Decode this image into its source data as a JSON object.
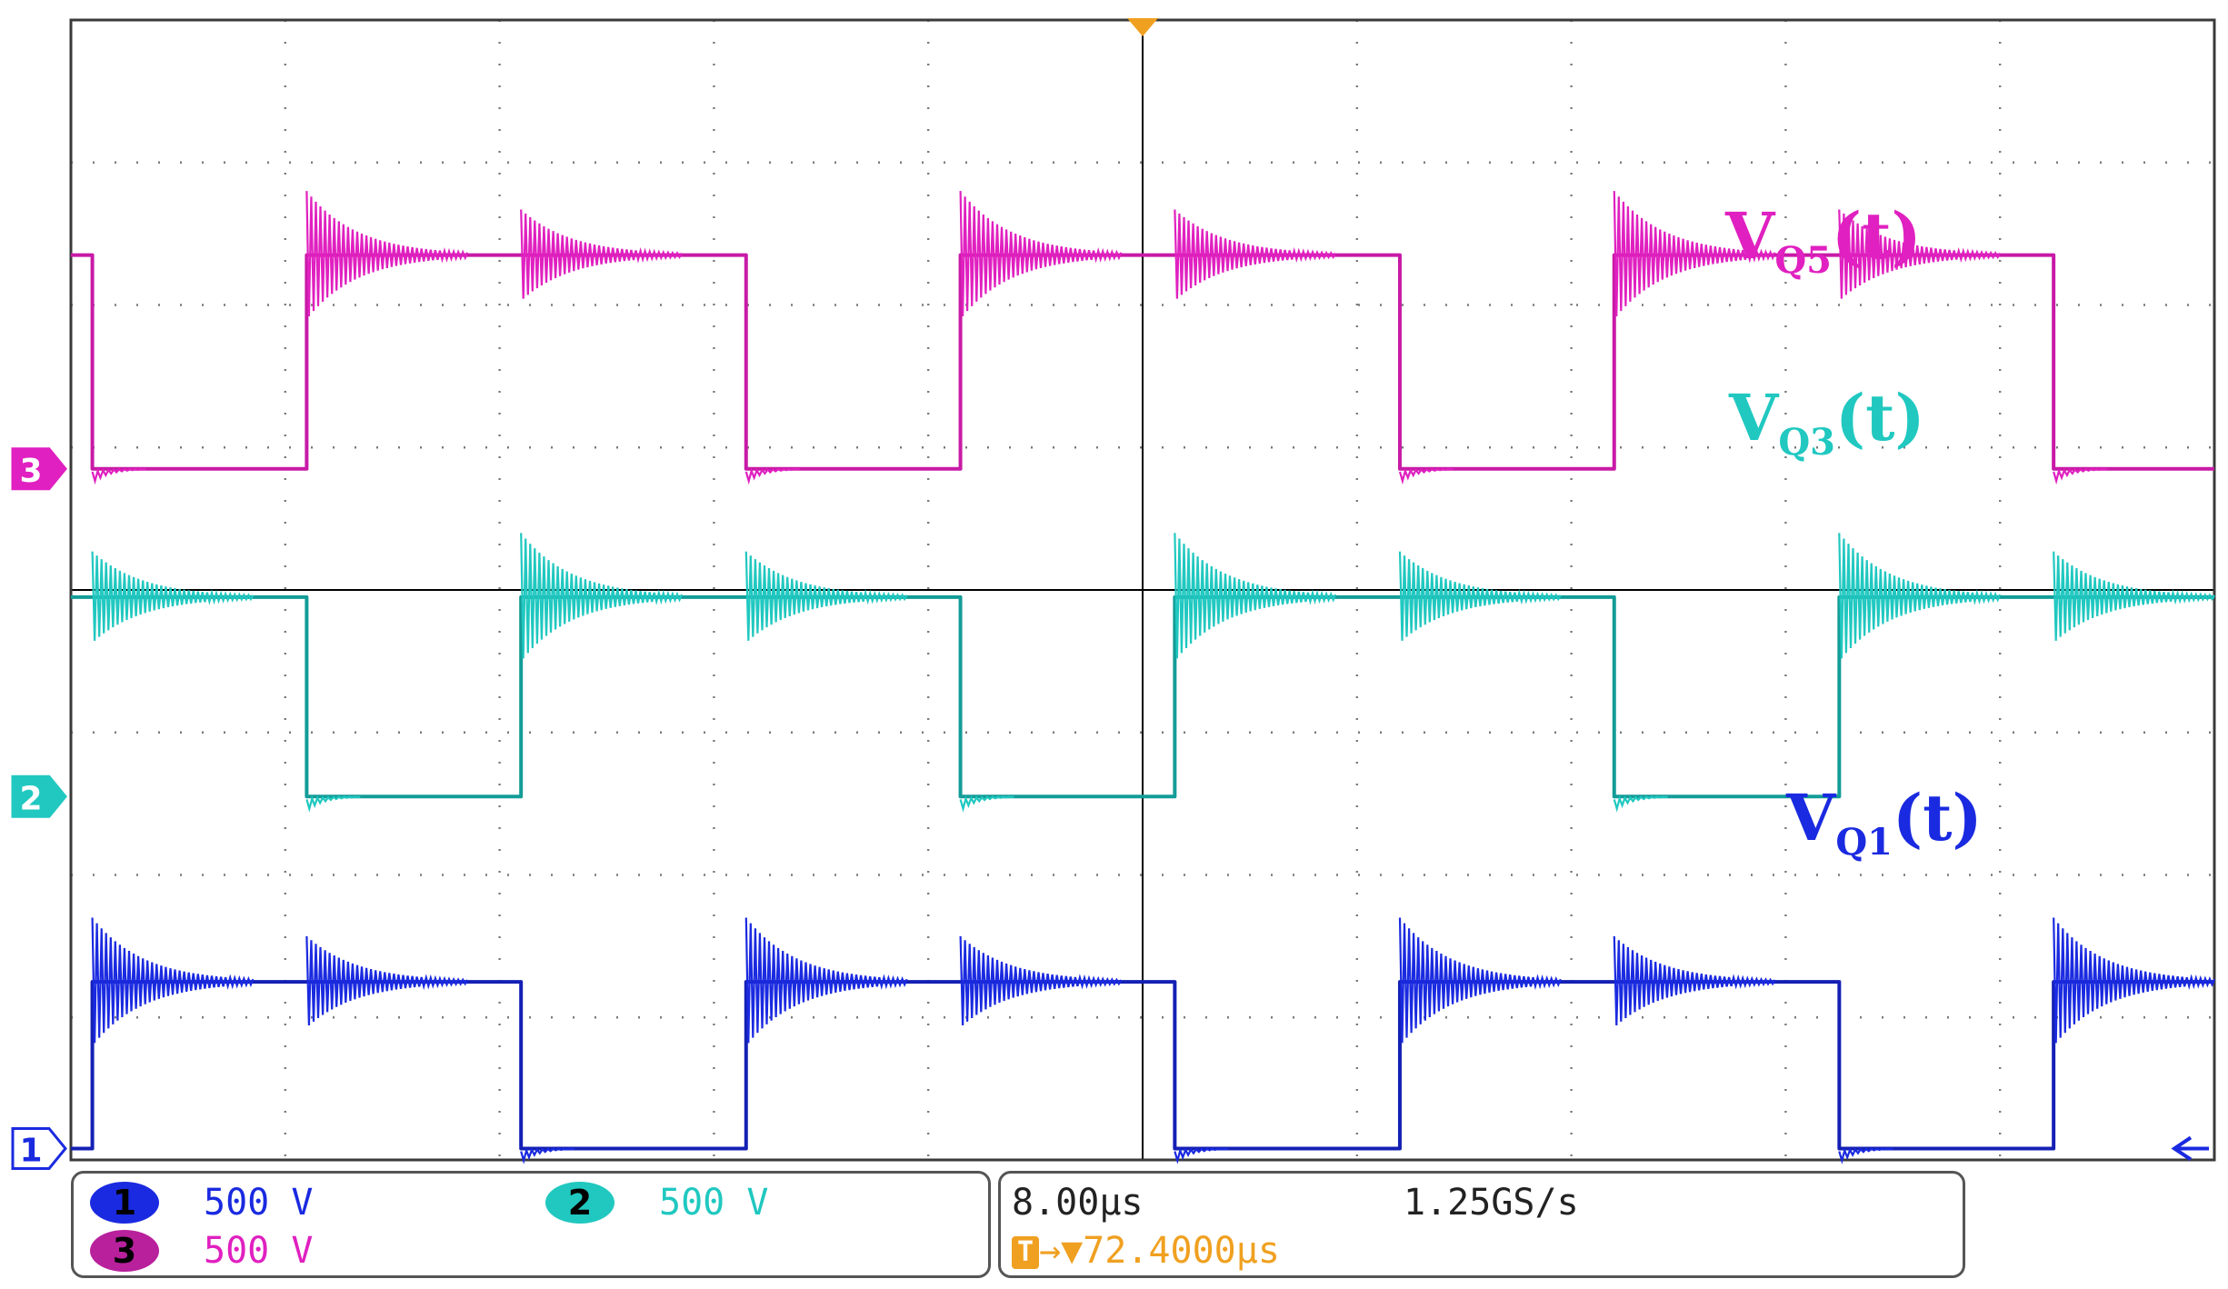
{
  "chart_data": {
    "type": "line",
    "xlim": [
      0,
      10
    ],
    "ylim": [
      0,
      8
    ],
    "grid": true,
    "series": [
      {
        "name": "V_Q5(t)",
        "channel": "3",
        "color": "#e020c0",
        "stroke": "#c81aa6",
        "label": {
          "main": "V",
          "sub": "Q5",
          "tail": "(t)"
        },
        "high": 6.35,
        "low": 4.85,
        "start": "high",
        "toggles": [
          0.1,
          1.1,
          3.15,
          4.15,
          6.2,
          7.2,
          9.25
        ]
      },
      {
        "name": "V_Q3(t)",
        "channel": "2",
        "color": "#20c8c0",
        "stroke": "#139c98",
        "label": {
          "main": "V",
          "sub": "Q3",
          "tail": "(t)"
        },
        "high": 3.95,
        "low": 2.55,
        "start": "high",
        "toggles": [
          1.1,
          2.1,
          4.15,
          5.15,
          7.2,
          8.25
        ]
      },
      {
        "name": "V_Q1(t)",
        "channel": "1",
        "color": "#1a2ae0",
        "stroke": "#1420b4",
        "label": {
          "main": "V",
          "sub": "Q1",
          "tail": "(t)"
        },
        "high": 1.25,
        "low": 0.08,
        "start": "low",
        "toggles": [
          0.1,
          2.1,
          3.15,
          5.15,
          6.2,
          8.25,
          9.25
        ]
      }
    ]
  },
  "channel_markers": {
    "ch3": "3",
    "ch2": "2",
    "ch1": "1"
  },
  "status_bar": {
    "ch1": {
      "badge": "1",
      "scale": "500 V"
    },
    "ch2": {
      "badge": "2",
      "scale": "500 V"
    },
    "ch3": {
      "badge": "3",
      "scale": "500 V"
    },
    "timebase": "8.00µs",
    "sample_rate": "1.25GS/s",
    "trigger": {
      "icon": "T",
      "arrow": "→▼",
      "time": "72.4000µs"
    }
  },
  "colors": {
    "grid": "#7a7a7a",
    "axis": "#000000",
    "trigger": "#f0a020",
    "ch1_badge": "#1a2ae0",
    "ch2_badge": "#20c8c0",
    "ch3_badge": "#b8209c"
  }
}
